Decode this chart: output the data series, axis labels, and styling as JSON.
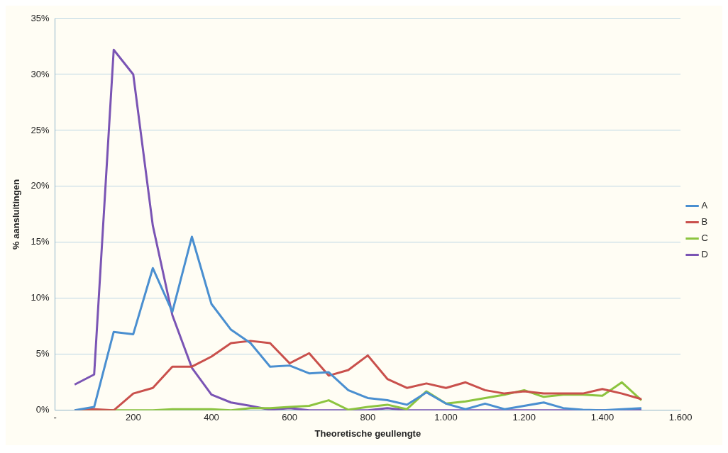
{
  "chart_data": {
    "type": "line",
    "xlabel": "Theoretische geullengte",
    "ylabel": "% aansluitingen",
    "x": [
      50,
      100,
      150,
      200,
      250,
      300,
      350,
      400,
      450,
      500,
      550,
      600,
      650,
      700,
      750,
      800,
      850,
      900,
      950,
      1000,
      1050,
      1100,
      1150,
      1200,
      1250,
      1300,
      1350,
      1400,
      1450,
      1500
    ],
    "series": [
      {
        "name": "A",
        "color": "#4a8fd0",
        "values": [
          0,
          0.3,
          7.0,
          6.8,
          12.7,
          8.8,
          15.5,
          9.5,
          7.2,
          6.0,
          3.9,
          4.0,
          3.3,
          3.4,
          1.8,
          1.1,
          0.9,
          0.5,
          1.6,
          0.6,
          0.1,
          0.6,
          0.1,
          0.4,
          0.7,
          0.2,
          0.05,
          0,
          0.1,
          0.2
        ]
      },
      {
        "name": "B",
        "color": "#c9504c",
        "values": [
          0,
          0.1,
          0,
          1.5,
          2.0,
          3.9,
          3.9,
          4.8,
          6.0,
          6.2,
          6.0,
          4.2,
          5.1,
          3.1,
          3.6,
          4.9,
          2.8,
          2.0,
          2.4,
          2.0,
          2.5,
          1.8,
          1.5,
          1.7,
          1.5,
          1.5,
          1.5,
          1.9,
          1.5,
          1.0
        ]
      },
      {
        "name": "C",
        "color": "#8cc43f",
        "values": [
          0,
          0,
          0,
          0,
          0,
          0.1,
          0.1,
          0.1,
          0,
          0.2,
          0.2,
          0.3,
          0.4,
          0.9,
          0.05,
          0.3,
          0.5,
          0.1,
          1.7,
          0.6,
          0.8,
          1.1,
          1.4,
          1.8,
          1.2,
          1.4,
          1.4,
          1.3,
          2.5,
          0.9
        ]
      },
      {
        "name": "D",
        "color": "#7a54b4",
        "values": [
          2.3,
          3.2,
          32.2,
          30.0,
          16.5,
          8.5,
          3.8,
          1.4,
          0.7,
          0.4,
          0.05,
          0.2,
          0,
          0,
          0,
          0,
          0.2,
          0,
          0,
          0,
          0,
          0,
          0,
          0,
          0,
          0,
          0,
          0,
          0,
          0.05
        ]
      }
    ],
    "xlim": [
      0,
      1600
    ],
    "xticks": [
      {
        "value": 0,
        "label": "-"
      },
      200,
      400,
      600,
      800,
      {
        "value": 1000,
        "label": "1.000"
      },
      {
        "value": 1200,
        "label": "1.200"
      },
      {
        "value": 1400,
        "label": "1.400"
      },
      {
        "value": 1600,
        "label": "1.600"
      }
    ],
    "ylim": [
      0,
      35
    ],
    "yticks": [
      {
        "value": 0,
        "label": "0%"
      },
      {
        "value": 5,
        "label": "5%"
      },
      {
        "value": 10,
        "label": "10%"
      },
      {
        "value": 15,
        "label": "15%"
      },
      {
        "value": 20,
        "label": "20%"
      },
      {
        "value": 25,
        "label": "25%"
      },
      {
        "value": 30,
        "label": "30%"
      },
      {
        "value": 35,
        "label": "35%"
      }
    ],
    "grid": "y",
    "legend": "right",
    "marker": "none",
    "line_style": "solid"
  }
}
